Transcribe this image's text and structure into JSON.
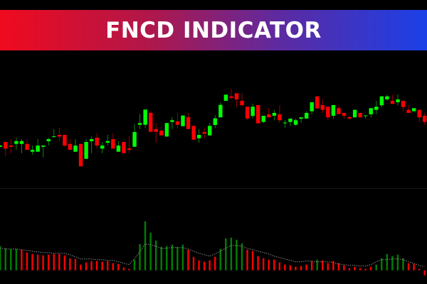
{
  "header": {
    "title": "FNCD INDICATOR"
  },
  "colors": {
    "bull": "#00ff00",
    "bear": "#ff0000",
    "hist_up": "#008000",
    "hist_down": "#ff0000",
    "signal": "#888888",
    "separator": "#666666",
    "banner_start": "#f00a1e",
    "banner_end": "#1a40e8"
  },
  "chart_data": [
    {
      "type": "candlestick",
      "title": "",
      "fields": [
        "open",
        "high",
        "low",
        "close"
      ],
      "ohlc": [
        [
          93.3,
          96,
          92.7,
          95
        ],
        [
          100,
          100,
          80.7,
          90.7
        ],
        [
          95,
          104,
          84.3,
          93.3
        ],
        [
          97.3,
          106,
          89.3,
          101.3
        ],
        [
          97.3,
          104,
          84.3,
          101.3
        ],
        [
          97.3,
          104,
          89,
          89
        ],
        [
          86.3,
          95,
          82.3,
          89
        ],
        [
          86.3,
          104,
          86.3,
          95
        ],
        [
          93.3,
          95,
          78.3,
          95
        ],
        [
          101,
          106,
          95.3,
          104
        ],
        [
          107.5,
          118.3,
          106,
          108
        ],
        [
          110,
          120,
          101,
          107.7
        ],
        [
          110,
          110,
          93.3,
          95
        ],
        [
          97.3,
          104,
          89,
          89
        ],
        [
          86.3,
          104,
          86.3,
          95
        ],
        [
          97.3,
          97.3,
          65.7,
          65.7
        ],
        [
          76.3,
          104,
          76.3,
          100
        ],
        [
          101,
          108,
          84.3,
          104
        ],
        [
          106,
          112,
          90.7,
          95
        ],
        [
          90.7,
          100,
          84.3,
          95
        ],
        [
          99,
          110,
          95.3,
          101.3
        ],
        [
          104,
          112,
          90.7,
          90.7
        ],
        [
          86.3,
          101.3,
          86.3,
          95
        ],
        [
          100,
          101.3,
          84.3,
          84.3
        ],
        [
          91,
          108,
          84.3,
          89
        ],
        [
          93.3,
          125,
          93.3,
          114
        ],
        [
          124.3,
          139.3,
          118.3,
          126.7
        ],
        [
          124.3,
          145.7,
          120,
          145.7
        ],
        [
          141,
          143.3,
          114.3,
          114.3
        ],
        [
          118.3,
          126.7,
          99,
          114.3
        ],
        [
          116,
          122.7,
          109.3,
          109.3
        ],
        [
          107.7,
          126.7,
          107.7,
          126.7
        ],
        [
          128.3,
          135,
          118.3,
          130.7
        ],
        [
          129,
          141,
          120,
          124.3
        ],
        [
          122.3,
          137.3,
          122.3,
          137.3
        ],
        [
          135,
          141,
          118.3,
          118.3
        ],
        [
          122.7,
          122.7,
          103.3,
          103.3
        ],
        [
          105.3,
          118.3,
          99,
          110
        ],
        [
          114,
          120,
          105.3,
          111.7
        ],
        [
          109.3,
          126.7,
          109.3,
          122.7
        ],
        [
          124,
          137.3,
          120,
          133.3
        ],
        [
          134.7,
          156,
          134.7,
          152.3
        ],
        [
          158,
          166.7,
          158,
          166.7
        ],
        [
          164.3,
          175,
          160,
          162.3
        ],
        [
          168.7,
          168.7,
          149.3,
          160
        ],
        [
          158,
          168.7,
          151.7,
          151.7
        ],
        [
          149.7,
          149.7,
          130.7,
          133
        ],
        [
          136.7,
          154,
          133,
          149.7
        ],
        [
          152,
          152,
          126.3,
          126.3
        ],
        [
          128.3,
          137,
          126.7,
          137
        ],
        [
          139,
          148,
          134.7,
          134.7
        ],
        [
          137,
          145.3,
          130.7,
          141
        ],
        [
          139,
          152,
          126.7,
          130.7
        ],
        [
          127,
          131,
          120,
          127.4
        ],
        [
          128.3,
          133,
          122.7,
          133
        ],
        [
          124.3,
          133,
          122.7,
          130.7
        ],
        [
          132.7,
          134.7,
          126.7,
          134.7
        ],
        [
          133,
          143.3,
          133,
          141
        ],
        [
          143.3,
          156,
          139,
          156
        ],
        [
          164.3,
          164.3,
          147.3,
          147.3
        ],
        [
          152,
          160,
          141,
          145.3
        ],
        [
          149.7,
          149.7,
          130.7,
          134.7
        ],
        [
          137,
          152,
          133,
          152
        ],
        [
          147.7,
          151.7,
          139.3,
          139.3
        ],
        [
          141,
          141,
          133,
          137
        ],
        [
          135,
          137.3,
          130.7,
          133
        ],
        [
          134.7,
          145.3,
          134.7,
          145.3
        ],
        [
          141,
          141,
          134.7,
          134.7
        ],
        [
          137.3,
          137.3,
          133,
          137.4
        ],
        [
          139,
          147.7,
          134.7,
          147.7
        ],
        [
          145.3,
          158,
          139,
          149.7
        ],
        [
          151.7,
          164.3,
          149.3,
          164.3
        ],
        [
          160,
          166.7,
          158,
          164.3
        ],
        [
          158,
          166.7,
          153.7,
          153.7
        ],
        [
          156,
          166.7,
          151.7,
          160
        ],
        [
          158,
          158,
          143.3,
          149.3
        ],
        [
          145.3,
          152,
          141,
          141
        ],
        [
          143.3,
          147.7,
          143.3,
          147.7
        ],
        [
          145.3,
          145.3,
          128.3,
          134.7
        ],
        [
          137,
          141,
          124.3,
          128.3
        ]
      ],
      "ylim": [
        60,
        180
      ],
      "grid": false
    },
    {
      "type": "bar",
      "title": "",
      "values": [
        34,
        31,
        30,
        30,
        29,
        25,
        23,
        22,
        21,
        22,
        23,
        23,
        21,
        17,
        16,
        8,
        11,
        13,
        13,
        12,
        13,
        10,
        9,
        4,
        2,
        15,
        37,
        69,
        53,
        42,
        33,
        34,
        36,
        33,
        36,
        29,
        19,
        14,
        12,
        14,
        19,
        30,
        45,
        46,
        43,
        38,
        29,
        27,
        20,
        17,
        15,
        15,
        11,
        8,
        7,
        5,
        6,
        8,
        13,
        15,
        14,
        10,
        13,
        10,
        7,
        3,
        5,
        3,
        2,
        5,
        8,
        17,
        23,
        20,
        22,
        17,
        10,
        9,
        2,
        -7
      ],
      "direction": [
        "up",
        "up",
        "up",
        "up",
        "down",
        "down",
        "down",
        "down",
        "down",
        "down",
        "down",
        "down",
        "down",
        "down",
        "down",
        "down",
        "down",
        "down",
        "down",
        "down",
        "down",
        "down",
        "down",
        "down",
        "down",
        "up",
        "up",
        "up",
        "up",
        "up",
        "up",
        "up",
        "up",
        "up",
        "up",
        "down",
        "down",
        "down",
        "down",
        "down",
        "down",
        "up",
        "up",
        "up",
        "up",
        "up",
        "down",
        "down",
        "down",
        "down",
        "down",
        "down",
        "down",
        "down",
        "down",
        "down",
        "down",
        "down",
        "down",
        "up",
        "down",
        "down",
        "down",
        "down",
        "down",
        "down",
        "down",
        "down",
        "down",
        "down",
        "up",
        "up",
        "up",
        "up",
        "up",
        "up",
        "down",
        "down",
        "down",
        "down"
      ],
      "signal": [
        31,
        30,
        30,
        30,
        29,
        28,
        27,
        26,
        25,
        25,
        24,
        24,
        24,
        22,
        19,
        16,
        16,
        16,
        15,
        15,
        14,
        14,
        12,
        10,
        8,
        16,
        26,
        37,
        36,
        34,
        31,
        31,
        32,
        32,
        32,
        30,
        27,
        24,
        22,
        20,
        23,
        27,
        31,
        35,
        35,
        34,
        31,
        29,
        27,
        25,
        23,
        20,
        18,
        16,
        14,
        12,
        12,
        13,
        13,
        12,
        12,
        12,
        11,
        9,
        8,
        7,
        7,
        6,
        6,
        8,
        12,
        15,
        15,
        16,
        16,
        15,
        12,
        10,
        7,
        5
      ],
      "ylim": [
        -10,
        75
      ],
      "grid": false
    }
  ]
}
